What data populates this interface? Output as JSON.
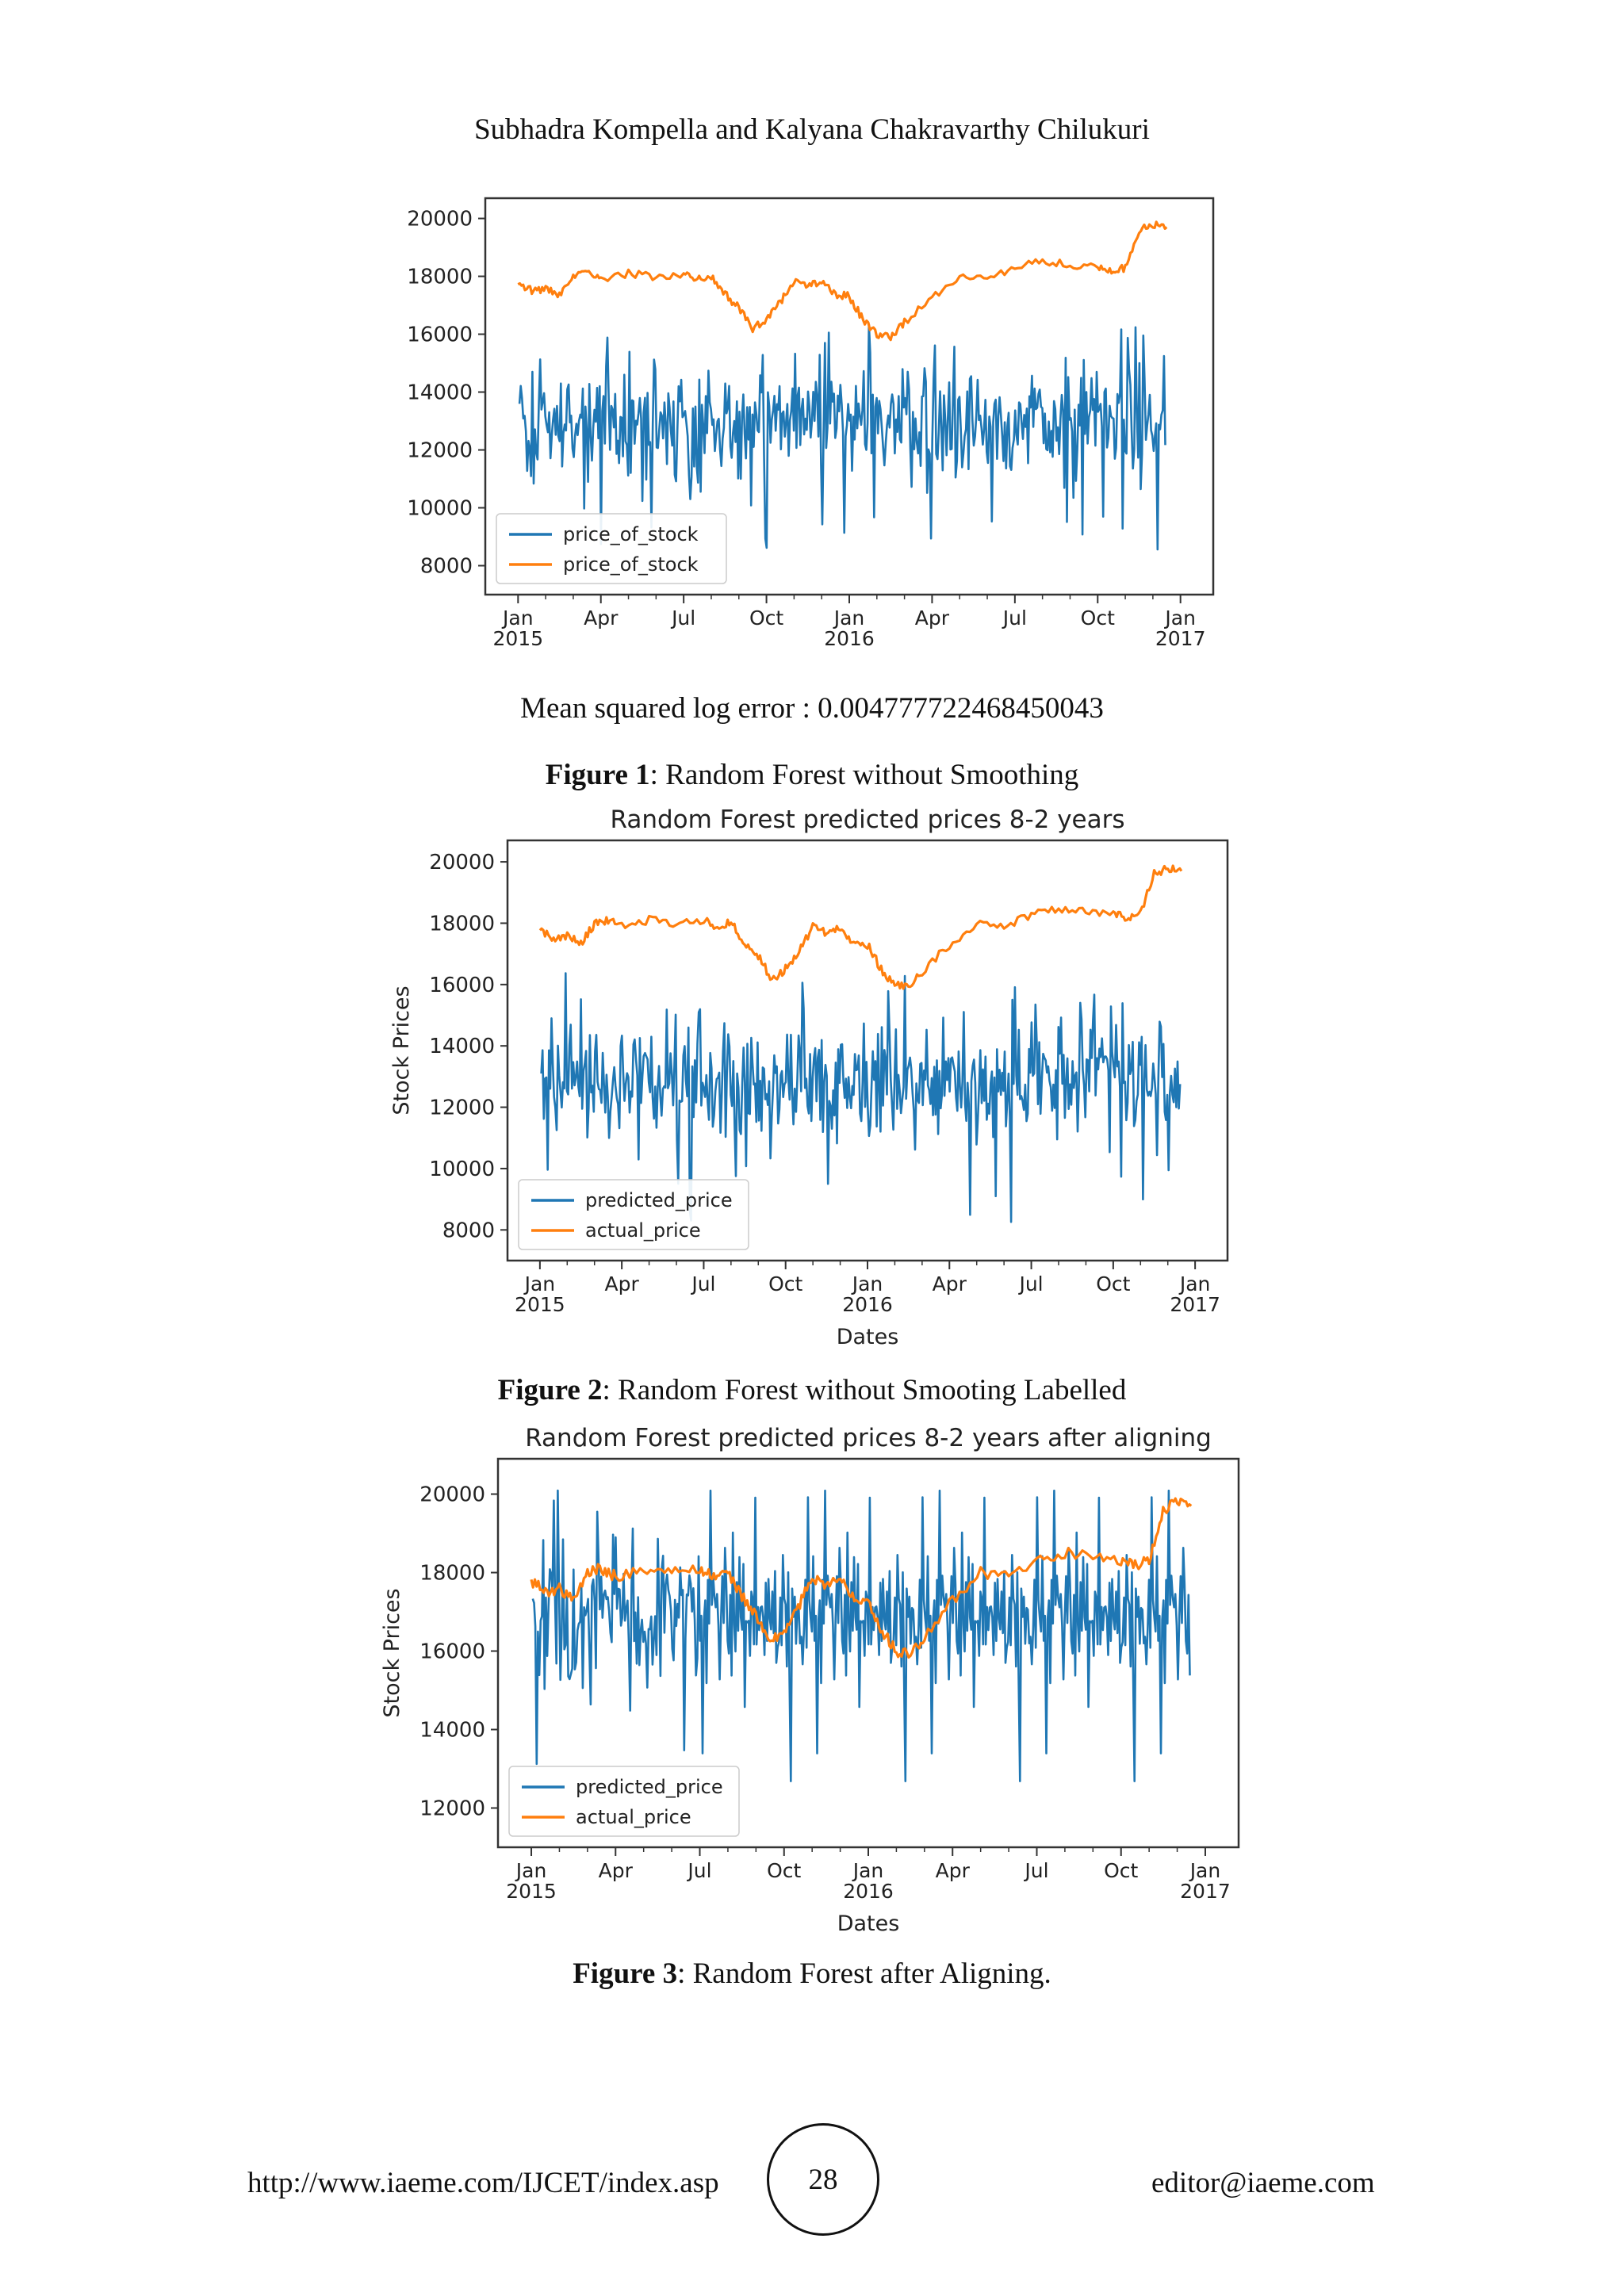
{
  "header": {
    "authors": "Subhadra Kompella and Kalyana Chakravarthy Chilukuri"
  },
  "mse_text": "Mean squared log error : 0.004777722468450043",
  "captions": [
    {
      "label": "Figure 1",
      "text": ": Random Forest without Smoothing"
    },
    {
      "label": "Figure 2",
      "text": ": Random Forest without Smooting Labelled"
    },
    {
      "label": "Figure 3",
      "text": ": Random Forest after Aligning."
    }
  ],
  "footer": {
    "url": "http://www.iaeme.com/IJCET/index.asp",
    "page_number": "28",
    "email": "editor@iaeme.com"
  },
  "colors": {
    "predicted": "#1f77b4",
    "actual": "#ff7f0e"
  },
  "chart_data": [
    {
      "type": "line",
      "title": "",
      "xlabel": "",
      "ylabel": "",
      "ylim": [
        7000,
        20700
      ],
      "yticks": [
        8000,
        10000,
        12000,
        14000,
        16000,
        18000,
        20000
      ],
      "xticks": [
        {
          "label": "Jan",
          "sub": "2015",
          "month": 0
        },
        {
          "label": "Apr",
          "sub": "",
          "month": 3
        },
        {
          "label": "Jul",
          "sub": "",
          "month": 6
        },
        {
          "label": "Oct",
          "sub": "",
          "month": 9
        },
        {
          "label": "Jan",
          "sub": "2016",
          "month": 12
        },
        {
          "label": "Apr",
          "sub": "",
          "month": 15
        },
        {
          "label": "Jul",
          "sub": "",
          "month": 18
        },
        {
          "label": "Oct",
          "sub": "",
          "month": 21
        },
        {
          "label": "Jan",
          "sub": "2017",
          "month": 24
        }
      ],
      "legend": "lower-left",
      "series": [
        {
          "name": "price_of_stock",
          "role": "predicted",
          "noise_center": 12900,
          "noise_spread": 1400,
          "min": 7300,
          "max": 16800
        },
        {
          "name": "price_of_stock",
          "role": "actual",
          "x": [
            0,
            0.5,
            1,
            1.5,
            2,
            2.5,
            3,
            4,
            5,
            6,
            6.5,
            7,
            7.5,
            8,
            8.5,
            9,
            9.5,
            10,
            10.5,
            11,
            11.5,
            12,
            12.5,
            13,
            13.5,
            14,
            15,
            16,
            17,
            18,
            19,
            20,
            21,
            21.5,
            22,
            22.5,
            23,
            23.5
          ],
          "y": [
            17800,
            17500,
            17600,
            17300,
            18000,
            18100,
            17900,
            18100,
            18000,
            18100,
            17900,
            18000,
            17400,
            16900,
            16200,
            16500,
            17100,
            17900,
            17700,
            17800,
            17400,
            17300,
            16500,
            16000,
            15900,
            16400,
            17300,
            18000,
            17900,
            18300,
            18500,
            18400,
            18300,
            18200,
            18300,
            19600,
            19800,
            19700
          ]
        }
      ]
    },
    {
      "type": "line",
      "title": "Random Forest predicted prices 8-2 years",
      "xlabel": "Dates",
      "ylabel": "Stock Prices",
      "ylim": [
        7000,
        20700
      ],
      "yticks": [
        8000,
        10000,
        12000,
        14000,
        16000,
        18000,
        20000
      ],
      "xticks": [
        {
          "label": "Jan",
          "sub": "2015",
          "month": 0
        },
        {
          "label": "Apr",
          "sub": "",
          "month": 3
        },
        {
          "label": "Jul",
          "sub": "",
          "month": 6
        },
        {
          "label": "Oct",
          "sub": "",
          "month": 9
        },
        {
          "label": "Jan",
          "sub": "2016",
          "month": 12
        },
        {
          "label": "Apr",
          "sub": "",
          "month": 15
        },
        {
          "label": "Jul",
          "sub": "",
          "month": 18
        },
        {
          "label": "Oct",
          "sub": "",
          "month": 21
        },
        {
          "label": "Jan",
          "sub": "2017",
          "month": 24
        }
      ],
      "legend": "lower-left",
      "series": [
        {
          "name": "predicted_price",
          "role": "predicted",
          "noise_center": 12900,
          "noise_spread": 1400,
          "min": 7300,
          "max": 16800
        },
        {
          "name": "actual_price",
          "role": "actual",
          "x": [
            0,
            0.5,
            1,
            1.5,
            2,
            2.5,
            3,
            4,
            5,
            6,
            6.5,
            7,
            7.5,
            8,
            8.5,
            9,
            9.5,
            10,
            10.5,
            11,
            11.5,
            12,
            12.5,
            13,
            13.5,
            14,
            15,
            16,
            17,
            18,
            19,
            20,
            21,
            21.5,
            22,
            22.5,
            23,
            23.5
          ],
          "y": [
            17800,
            17500,
            17600,
            17300,
            18000,
            18100,
            17900,
            18100,
            18000,
            18100,
            17900,
            18000,
            17400,
            16900,
            16200,
            16500,
            17100,
            17900,
            17700,
            17800,
            17400,
            17300,
            16500,
            16000,
            15900,
            16400,
            17300,
            18000,
            17900,
            18300,
            18500,
            18400,
            18300,
            18200,
            18300,
            19600,
            19800,
            19700
          ]
        }
      ]
    },
    {
      "type": "line",
      "title": "Random Forest predicted prices 8-2 years after aligning",
      "xlabel": "Dates",
      "ylabel": "Stock Prices",
      "ylim": [
        11000,
        20900
      ],
      "yticks": [
        12000,
        14000,
        16000,
        18000,
        20000
      ],
      "xticks": [
        {
          "label": "Jan",
          "sub": "2015",
          "month": 0
        },
        {
          "label": "Apr",
          "sub": "",
          "month": 3
        },
        {
          "label": "Jul",
          "sub": "",
          "month": 6
        },
        {
          "label": "Oct",
          "sub": "",
          "month": 9
        },
        {
          "label": "Jan",
          "sub": "2016",
          "month": 12
        },
        {
          "label": "Apr",
          "sub": "",
          "month": 15
        },
        {
          "label": "Jul",
          "sub": "",
          "month": 18
        },
        {
          "label": "Oct",
          "sub": "",
          "month": 21
        },
        {
          "label": "Jan",
          "sub": "2017",
          "month": 24
        }
      ],
      "legend": "lower-left",
      "series": [
        {
          "name": "predicted_price",
          "role": "predicted",
          "noise_center": 16700,
          "noise_spread": 1400,
          "min": 11200,
          "max": 20700
        },
        {
          "name": "actual_price",
          "role": "actual",
          "x": [
            0,
            0.5,
            1,
            1.5,
            2,
            2.5,
            3,
            4,
            5,
            6,
            6.5,
            7,
            7.5,
            8,
            8.5,
            9,
            9.5,
            10,
            10.5,
            11,
            11.5,
            12,
            12.5,
            13,
            13.5,
            14,
            15,
            16,
            17,
            18,
            19,
            20,
            21,
            21.5,
            22,
            22.5,
            23,
            23.5
          ],
          "y": [
            17800,
            17500,
            17600,
            17300,
            18000,
            18100,
            17900,
            18100,
            18000,
            18100,
            17900,
            18000,
            17400,
            16900,
            16200,
            16500,
            17100,
            17900,
            17700,
            17800,
            17400,
            17300,
            16500,
            16000,
            15900,
            16400,
            17300,
            18000,
            17900,
            18300,
            18500,
            18400,
            18300,
            18200,
            18300,
            19600,
            19800,
            19700
          ]
        }
      ]
    }
  ]
}
